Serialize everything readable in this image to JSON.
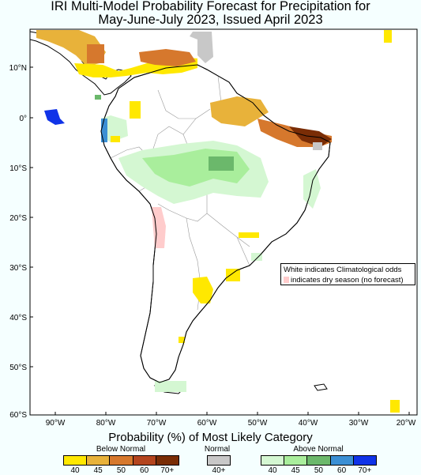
{
  "title_line1": "IRI Multi-Model Probability Forecast for Precipitation for",
  "title_line2": "May-June-July 2023, Issued April 2023",
  "axes": {
    "lat_labels": [
      "10°N",
      "0°",
      "10°S",
      "20°S",
      "30°S",
      "40°S",
      "50°S",
      "60°S"
    ],
    "lon_labels": [
      "90°W",
      "80°W",
      "70°W",
      "60°W",
      "50°W",
      "40°W",
      "30°W",
      "20°W"
    ]
  },
  "note": {
    "line1": "White indicates Climatological odds",
    "line2": "indicates dry season (no forecast)"
  },
  "legend": {
    "title": "Probability (%) of Most Likely Category",
    "below_label": "Below Normal",
    "normal_label": "Normal",
    "above_label": "Above Normal",
    "below": [
      {
        "label": "40",
        "color": "#ffe800"
      },
      {
        "label": "45",
        "color": "#e8b23a"
      },
      {
        "label": "50",
        "color": "#d6782d"
      },
      {
        "label": "60",
        "color": "#b4451e"
      },
      {
        "label": "70+",
        "color": "#7a2d06"
      }
    ],
    "normal": [
      {
        "label": "40+",
        "color": "#c8c8c8"
      }
    ],
    "above": [
      {
        "label": "40",
        "color": "#d4f7d2"
      },
      {
        "label": "45",
        "color": "#a9ee9c"
      },
      {
        "label": "50",
        "color": "#6bb86b"
      },
      {
        "label": "60",
        "color": "#3b8fd4"
      },
      {
        "label": "70+",
        "color": "#1033e8"
      }
    ]
  },
  "colors": {
    "background": "#f5ffff",
    "dry_season": "#ffcccc",
    "coast": "#000000",
    "border": "#999999"
  }
}
